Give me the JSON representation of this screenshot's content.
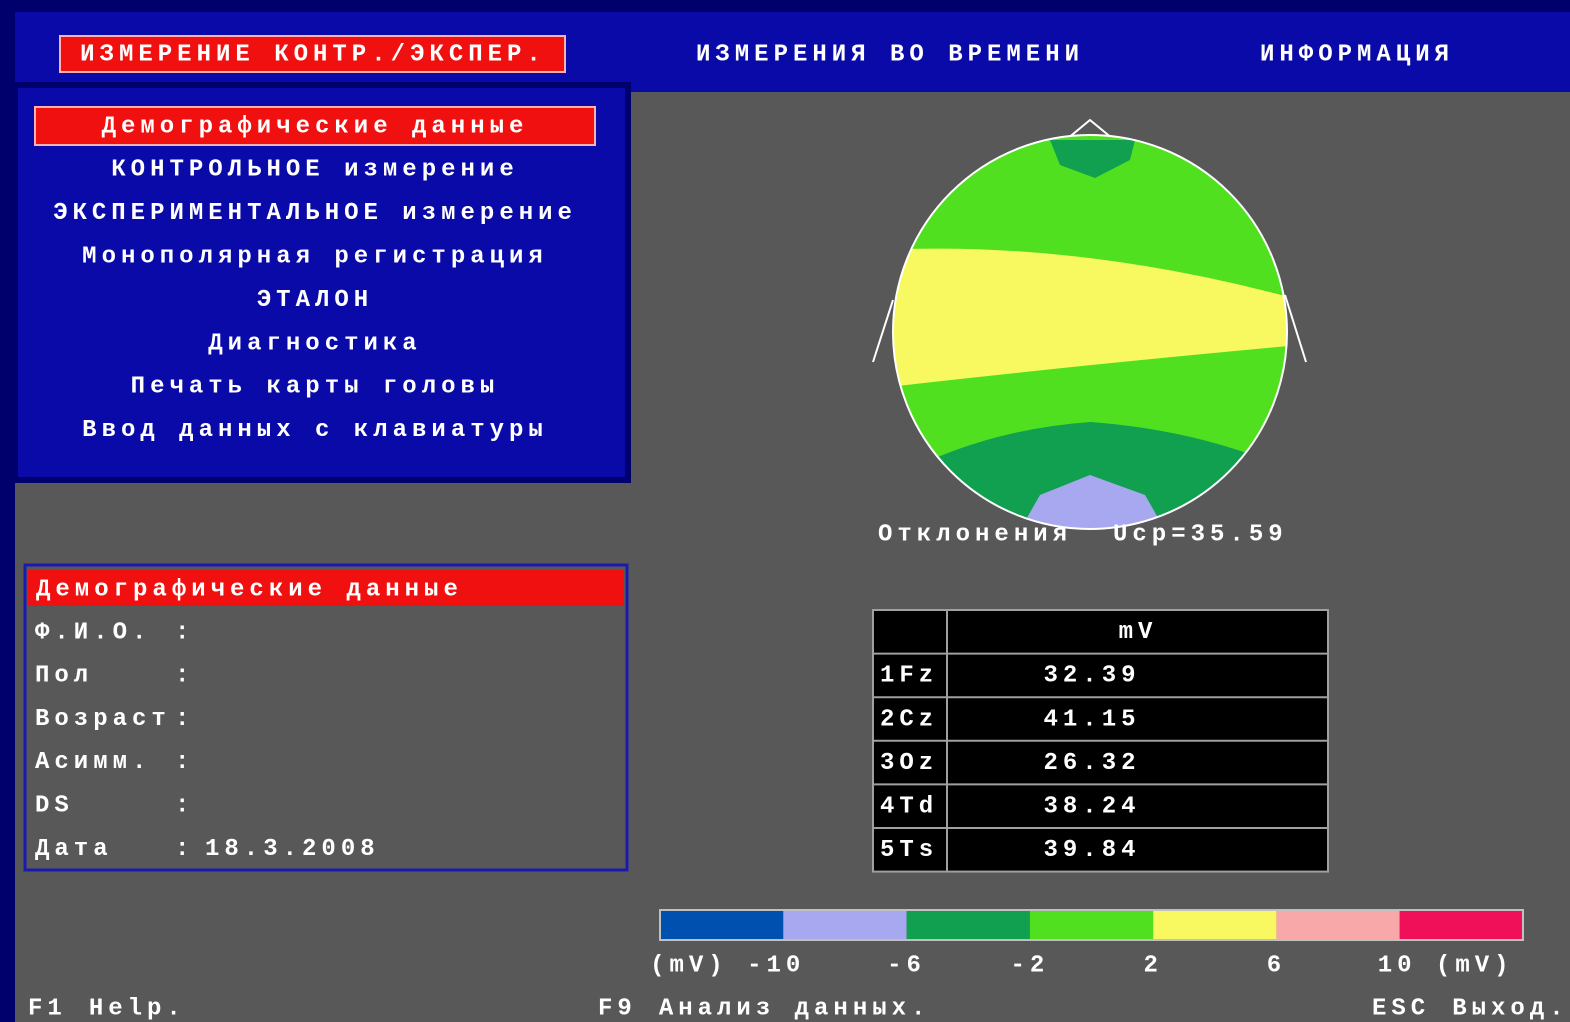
{
  "top_menu": {
    "items": [
      "ИЗМЕРЕНИЕ КОНТР./ЭКСПЕР.",
      "ИЗМЕРЕНИЯ ВО ВРЕМЕНИ",
      "ИНФОРМАЦИЯ"
    ],
    "selected": 0
  },
  "side_menu": {
    "items": [
      "Демографические  данные",
      "КОНТРОЛЬНОЕ измерение",
      "ЭКСПЕРИМЕНТАЛЬНОЕ измерение",
      "Монополярная  регистрация",
      "ЭТАЛОН",
      "Диагностика",
      "Печать карты головы",
      "Ввод данных с клавиатуры"
    ],
    "selected": 0,
    "disabled": [
      2
    ]
  },
  "demographics": {
    "title": "Демографические данные",
    "separator": ":",
    "fields": [
      {
        "label": "Ф.И.О."
      },
      {
        "label": "Пол"
      },
      {
        "label": "Возраст"
      },
      {
        "label": "Асимм."
      },
      {
        "label": "DS"
      },
      {
        "label": "Дата",
        "value": "18.3.2008"
      }
    ]
  },
  "head_map": {
    "caption": "Отклонения",
    "mean": "Ucp=35.59"
  },
  "table": {
    "header": "mV",
    "rows": [
      [
        "1Fz",
        "32.39"
      ],
      [
        "2Cz",
        "41.15"
      ],
      [
        "3Oz",
        "26.32"
      ],
      [
        "4Td",
        "38.24"
      ],
      [
        "5Ts",
        "39.84"
      ]
    ]
  },
  "scale": {
    "colors": [
      "#0050b0",
      "#a8a8f0",
      "#10a050",
      "#50e020",
      "#f8f860",
      "#f8a8a8",
      "#f0105a"
    ],
    "labels": [
      "(mV) -10",
      "-6",
      "-2",
      "2",
      "6",
      "10 (mV)"
    ]
  },
  "footer": [
    {
      "key": "F1",
      "text": "Help."
    },
    {
      "key": "F9",
      "text": "Анализ данных."
    },
    {
      "key": "ESC",
      "text": "Выход."
    }
  ]
}
